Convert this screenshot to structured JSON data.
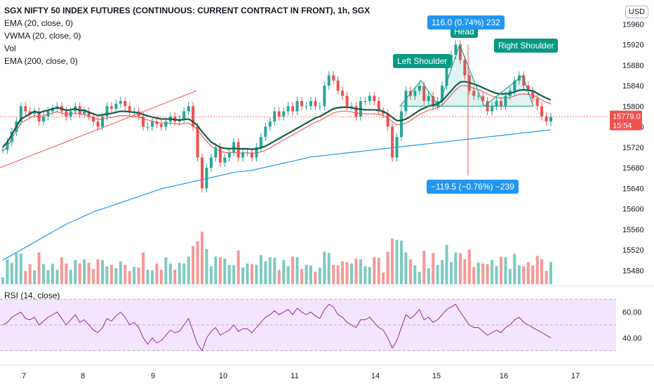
{
  "legend": {
    "title": "SGX NIFTY 50 INDEX FUTURES (CONTINUOUS: CURRENT CONTRACT IN FRONT), 1h, SGX",
    "indicators": [
      "EMA (20, close, 0)",
      "VWMA (20, close, 0)",
      "Vol",
      "EMA (200, close, 0)"
    ]
  },
  "rsi_label": "RSI (14, close)",
  "currency_button": "USD",
  "annotations": {
    "left_shoulder": "Left Shoulder",
    "head": "Head",
    "right_shoulder": "Right Shoulder",
    "measure_up": "116.0 (0.74%) 232",
    "measure_down": "−119.5 (−0.76%) −239"
  },
  "price_tags": {
    "last_price": "15779.0",
    "countdown": "15:54"
  },
  "colors": {
    "up": "#26a69a",
    "down": "#ef5350",
    "ema20": "#0d5c4e",
    "vwma": "#f44336",
    "ema200": "#2196f3",
    "rsi": "#9c27b0",
    "rsi_band": "#f3e5fd",
    "label_teal": "#089981",
    "label_blue": "#2196f3"
  },
  "chart_data": {
    "type": "candlestick",
    "x_ticks": [
      "7",
      "8",
      "9",
      "10",
      "11",
      "14",
      "15",
      "16",
      "17"
    ],
    "price_axis": {
      "ylim": [
        15460,
        16000
      ],
      "ticks": [
        15480,
        15520,
        15560,
        15600,
        15640,
        15680,
        15720,
        15760,
        15800,
        15840,
        15880,
        15920,
        15960
      ]
    },
    "rsi_axis": {
      "ylim": [
        20,
        80
      ],
      "ticks": [
        40.0,
        60.0
      ],
      "band": [
        30,
        70
      ]
    },
    "series": [
      {
        "name": "Price",
        "close": [
          15715,
          15730,
          15750,
          15770,
          15800,
          15790,
          15785,
          15790,
          15770,
          15780,
          15790,
          15795,
          15800,
          15790,
          15780,
          15790,
          15800,
          15785,
          15790,
          15780,
          15770,
          15760,
          15780,
          15800,
          15795,
          15805,
          15810,
          15800,
          15790,
          15790,
          15780,
          15760,
          15760,
          15770,
          15765,
          15760,
          15770,
          15780,
          15770,
          15775,
          15790,
          15800,
          15760,
          15700,
          15640,
          15680,
          15700,
          15720,
          15690,
          15700,
          15710,
          15730,
          15700,
          15710,
          15710,
          15700,
          15720,
          15740,
          15760,
          15770,
          15790,
          15780,
          15790,
          15800,
          15790,
          15810,
          15800,
          15800,
          15810,
          15800,
          15800,
          15840,
          15860,
          15850,
          15830,
          15820,
          15800,
          15800,
          15780,
          15810,
          15810,
          15820,
          15810,
          15790,
          15785,
          15760,
          15700,
          15740,
          15790,
          15830,
          15820,
          15830,
          15840,
          15810,
          15820,
          15800,
          15810,
          15840,
          15880,
          15900,
          15920,
          15890,
          15860,
          15830,
          15820,
          15820,
          15810,
          15790,
          15800,
          15810,
          15800,
          15820,
          15830,
          15850,
          15860,
          15840,
          15830,
          15815,
          15800,
          15780,
          15770,
          15779
        ]
      },
      {
        "name": "EMA (20, close, 0)",
        "close": [
          15720,
          15730,
          15745,
          15760,
          15775,
          15780,
          15785,
          15790,
          15787,
          15790,
          15792,
          15795,
          15797,
          15795,
          15792,
          15793,
          15795,
          15792,
          15792,
          15788,
          15785,
          15782,
          15783,
          15785,
          15786,
          15788,
          15790,
          15790,
          15789,
          15788,
          15787,
          15784,
          15781,
          15779,
          15777,
          15775,
          15775,
          15775,
          15774,
          15773,
          15774,
          15775,
          15770,
          15762,
          15750,
          15740,
          15730,
          15725,
          15720,
          15718,
          15717,
          15718,
          15717,
          15717,
          15717,
          15716,
          15717,
          15719,
          15722,
          15727,
          15732,
          15737,
          15742,
          15747,
          15752,
          15757,
          15762,
          15767,
          15772,
          15777,
          15780,
          15785,
          15790,
          15795,
          15797,
          15798,
          15798,
          15797,
          15795,
          15794,
          15793,
          15793,
          15793,
          15792,
          15790,
          15785,
          15778,
          15772,
          15772,
          15775,
          15780,
          15786,
          15792,
          15796,
          15800,
          15802,
          15805,
          15810,
          15820,
          15830,
          15840,
          15847,
          15848,
          15846,
          15843,
          15840,
          15836,
          15832,
          15828,
          15825,
          15824,
          15824,
          15825,
          15828,
          15831,
          15832,
          15831,
          15830,
          15825,
          15820,
          15816,
          15812
        ]
      },
      {
        "name": "EMA (200, close, 0)",
        "close": [
          15500,
          15505,
          15510,
          15515,
          15520,
          15525,
          15530,
          15535,
          15540,
          15545,
          15550,
          15555,
          15560,
          15565,
          15570,
          15574,
          15578,
          15582,
          15586,
          15590,
          15594,
          15597,
          15600,
          15603,
          15606,
          15609,
          15612,
          15615,
          15618,
          15621,
          15624,
          15627,
          15630,
          15633,
          15636,
          15639,
          15641,
          15643,
          15645,
          15647,
          15649,
          15651,
          15653,
          15655,
          15657,
          15659,
          15661,
          15663,
          15665,
          15667,
          15669,
          15671,
          15672,
          15673,
          15674,
          15675,
          15677,
          15679,
          15681,
          15683,
          15685,
          15687,
          15689,
          15691,
          15693,
          15695,
          15697,
          15699,
          15701,
          15702,
          15703,
          15704,
          15705,
          15706,
          15707,
          15708,
          15709,
          15710,
          15711,
          15712,
          15713,
          15714,
          15715,
          15716,
          15717,
          15718,
          15719,
          15720,
          15721,
          15722,
          15723,
          15724,
          15725,
          15726,
          15727,
          15728,
          15729,
          15730,
          15731,
          15732,
          15733,
          15734,
          15735,
          15736,
          15737,
          15738,
          15739,
          15740,
          15741,
          15742,
          15743,
          15744,
          15745,
          15746,
          15747,
          15748,
          15749,
          15750,
          15751,
          15752,
          15753,
          15754
        ]
      },
      {
        "name": "RSI (14, close)",
        "close": [
          50,
          52,
          56,
          58,
          60,
          55,
          54,
          56,
          50,
          53,
          56,
          58,
          60,
          55,
          50,
          54,
          58,
          52,
          54,
          50,
          46,
          44,
          48,
          55,
          53,
          57,
          60,
          56,
          50,
          52,
          48,
          40,
          35,
          40,
          36,
          38,
          42,
          46,
          44,
          45,
          50,
          55,
          45,
          35,
          30,
          40,
          45,
          48,
          42,
          44,
          46,
          50,
          45,
          47,
          47,
          44,
          48,
          52,
          56,
          58,
          61,
          58,
          60,
          62,
          58,
          63,
          60,
          58,
          60,
          57,
          55,
          62,
          66,
          64,
          58,
          56,
          52,
          50,
          48,
          54,
          54,
          56,
          52,
          48,
          46,
          40,
          32,
          38,
          48,
          58,
          55,
          58,
          62,
          54,
          56,
          52,
          54,
          58,
          62,
          64,
          66,
          60,
          55,
          50,
          48,
          48,
          45,
          42,
          44,
          46,
          44,
          48,
          50,
          54,
          56,
          52,
          50,
          48,
          46,
          44,
          42,
          40
        ]
      }
    ],
    "x_labels_shown": [
      "7",
      "8",
      "9",
      "10",
      "11",
      "14",
      "15",
      "16",
      "17"
    ]
  }
}
